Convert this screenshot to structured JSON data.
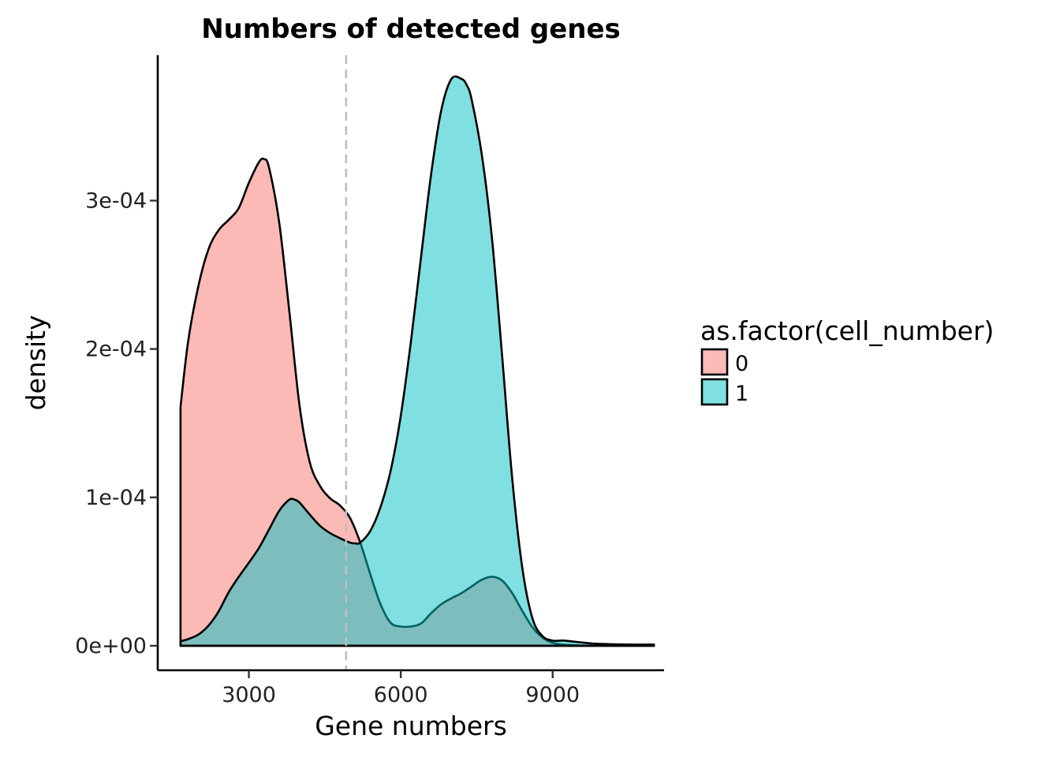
{
  "chart_data": {
    "type": "area",
    "title": "Numbers of detected genes",
    "xlabel": "Gene numbers",
    "ylabel": "density",
    "xlim": [
      1200,
      11200
    ],
    "ylim": [
      -1.65e-05,
      0.000398
    ],
    "x_ticks": [
      {
        "value": 3000,
        "label": "3000"
      },
      {
        "value": 6000,
        "label": "6000"
      },
      {
        "value": 9000,
        "label": "9000"
      }
    ],
    "y_ticks": [
      {
        "value": 0,
        "label": "0e+00"
      },
      {
        "value": 0.0001,
        "label": "1e-04"
      },
      {
        "value": 0.0002,
        "label": "2e-04"
      },
      {
        "value": 0.0003,
        "label": "3e-04"
      }
    ],
    "vline": {
      "x": 4920,
      "style": "dashed",
      "color": "#bfbfbf"
    },
    "legend": {
      "title": "as.factor(cell_number)",
      "position": "right"
    },
    "grid": false,
    "series": [
      {
        "name": "0",
        "fill": "#F8766D",
        "opacity": 0.5,
        "x": [
          1650,
          1800,
          2000,
          2200,
          2400,
          2600,
          2800,
          3000,
          3200,
          3300,
          3400,
          3600,
          3800,
          4000,
          4200,
          4400,
          4600,
          4800,
          5000,
          5200,
          5400,
          5600,
          5800,
          6000,
          6200,
          6400,
          6600,
          6800,
          7000,
          7200,
          7400,
          7600,
          7800,
          8000,
          8200,
          8400,
          8600,
          8800,
          9000,
          9200,
          9500,
          9800,
          10200,
          10600,
          11000
        ],
        "y": [
          0.000161,
          0.000205,
          0.000242,
          0.000267,
          0.00028,
          0.000287,
          0.000295,
          0.000312,
          0.000326,
          0.000328,
          0.000322,
          0.000285,
          0.000225,
          0.000162,
          0.000124,
          0.000108,
          9.95e-05,
          9.45e-05,
          8.6e-05,
          6.95e-05,
          4.8e-05,
          2.8e-05,
          1.55e-05,
          1.3e-05,
          1.3e-05,
          1.5e-05,
          2.2e-05,
          2.8e-05,
          3.2e-05,
          3.55e-05,
          4e-05,
          4.45e-05,
          4.65e-05,
          4.4e-05,
          3.55e-05,
          2.35e-05,
          1.25e-05,
          5.5e-06,
          2e-06,
          8e-07,
          3e-07,
          1e-07,
          1e-07,
          1e-07,
          1e-07
        ]
      },
      {
        "name": "1",
        "fill": "#00BFC4",
        "opacity": 0.5,
        "x": [
          1650,
          1800,
          2000,
          2200,
          2400,
          2600,
          2800,
          3000,
          3200,
          3400,
          3600,
          3800,
          3900,
          4000,
          4200,
          4400,
          4600,
          4800,
          5000,
          5100,
          5200,
          5400,
          5600,
          5800,
          6000,
          6200,
          6400,
          6600,
          6800,
          7000,
          7200,
          7300,
          7400,
          7600,
          7800,
          8000,
          8200,
          8400,
          8600,
          8800,
          9000,
          9200,
          9500,
          9800,
          10200,
          10600,
          11000
        ],
        "y": [
          3e-06,
          4.5e-06,
          7.5e-06,
          1.35e-05,
          2.3e-05,
          3.6e-05,
          4.65e-05,
          5.6e-05,
          6.6e-05,
          7.85e-05,
          9.1e-05,
          9.85e-05,
          9.85e-05,
          9.65e-05,
          8.85e-05,
          8.1e-05,
          7.6e-05,
          7.25e-05,
          6.95e-05,
          6.9e-05,
          6.95e-05,
          7.75e-05,
          9.35e-05,
          0.000118,
          0.000155,
          0.000205,
          0.000262,
          0.000318,
          0.000361,
          0.000382,
          0.000382,
          0.000378,
          0.000368,
          0.000331,
          0.000275,
          0.000196,
          0.000113,
          5.25e-05,
          1.85e-05,
          6.5e-06,
          3.5e-06,
          3.5e-06,
          2.5e-06,
          1.5e-06,
          1e-06,
          8e-07,
          8e-07
        ]
      }
    ]
  }
}
